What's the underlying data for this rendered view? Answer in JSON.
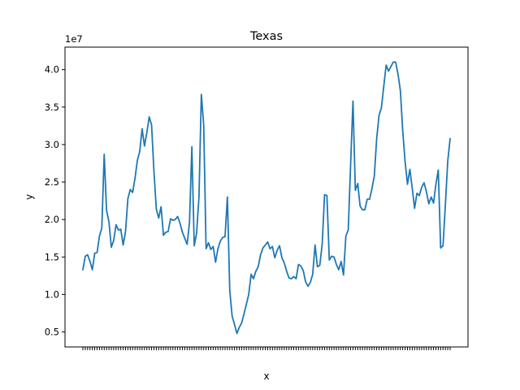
{
  "chart_data": {
    "type": "line",
    "title": "Texas",
    "xlabel": "x",
    "ylabel": "y",
    "offset_text": "1e7",
    "ylim": [
      0.3,
      4.3
    ],
    "yticks": [
      0.5,
      1.0,
      1.5,
      2.0,
      2.5,
      3.0,
      3.5,
      4.0
    ],
    "ytick_labels": [
      "0.5",
      "1.0",
      "1.5",
      "2.0",
      "2.5",
      "3.0",
      "3.5",
      "4.0"
    ],
    "grid": false,
    "series": [
      {
        "color": "#1f77b4",
        "values": [
          1.33,
          1.51,
          1.53,
          1.44,
          1.33,
          1.55,
          1.56,
          1.78,
          1.89,
          2.87,
          2.12,
          1.97,
          1.63,
          1.72,
          1.93,
          1.86,
          1.87,
          1.66,
          1.84,
          2.28,
          2.4,
          2.36,
          2.55,
          2.79,
          2.91,
          3.21,
          2.98,
          3.16,
          3.37,
          3.26,
          2.64,
          2.14,
          2.02,
          2.17,
          1.79,
          1.83,
          1.84,
          2.01,
          1.99,
          2.0,
          2.04,
          1.95,
          1.83,
          1.75,
          1.67,
          1.96,
          2.97,
          1.65,
          1.82,
          2.3,
          3.67,
          3.26,
          1.61,
          1.69,
          1.6,
          1.64,
          1.43,
          1.61,
          1.71,
          1.76,
          1.77,
          2.3,
          1.05,
          0.71,
          0.6,
          0.48,
          0.56,
          0.62,
          0.74,
          0.87,
          1.0,
          1.27,
          1.21,
          1.31,
          1.37,
          1.53,
          1.62,
          1.66,
          1.7,
          1.61,
          1.64,
          1.49,
          1.59,
          1.65,
          1.49,
          1.42,
          1.31,
          1.22,
          1.21,
          1.24,
          1.21,
          1.4,
          1.38,
          1.32,
          1.17,
          1.11,
          1.16,
          1.27,
          1.66,
          1.37,
          1.39,
          1.67,
          2.33,
          2.32,
          1.46,
          1.51,
          1.5,
          1.4,
          1.33,
          1.44,
          1.26,
          1.78,
          1.86,
          2.73,
          3.58,
          2.39,
          2.48,
          2.18,
          2.13,
          2.13,
          2.27,
          2.27,
          2.41,
          2.58,
          3.08,
          3.39,
          3.49,
          3.78,
          4.06,
          3.98,
          4.04,
          4.1,
          4.1,
          3.94,
          3.72,
          3.18,
          2.77,
          2.47,
          2.67,
          2.42,
          2.15,
          2.35,
          2.32,
          2.43,
          2.49,
          2.37,
          2.21,
          2.3,
          2.22,
          2.47,
          2.66,
          1.62,
          1.65,
          2.2,
          2.78,
          3.08
        ]
      }
    ]
  }
}
